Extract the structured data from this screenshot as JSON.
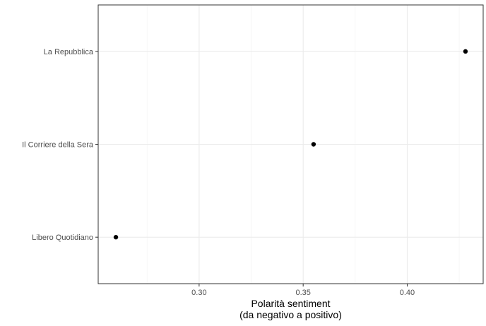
{
  "chart_data": {
    "type": "scatter",
    "title": "",
    "xlabel": "Polarità sentiment\n(da negativo a positivo)",
    "ylabel": "",
    "categories": [
      "Libero Quotidiano",
      "Il Corriere della Sera",
      "La Repubblica"
    ],
    "values": [
      0.26,
      0.355,
      0.428
    ],
    "xlim": [
      0.2515,
      0.4365
    ],
    "x_ticks": [
      "0.30",
      "0.35",
      "0.40"
    ],
    "x_tick_values": [
      0.3,
      0.35,
      0.4
    ],
    "x_minor_values": [
      0.275,
      0.325,
      0.375,
      0.425
    ],
    "grid": true,
    "legend": "none",
    "colors": {
      "point": "#000000",
      "grid_major": "#ebebeb",
      "grid_minor": "#f5f5f5",
      "panel_border": "#333333",
      "tick_text": "#4d4d4d"
    }
  }
}
